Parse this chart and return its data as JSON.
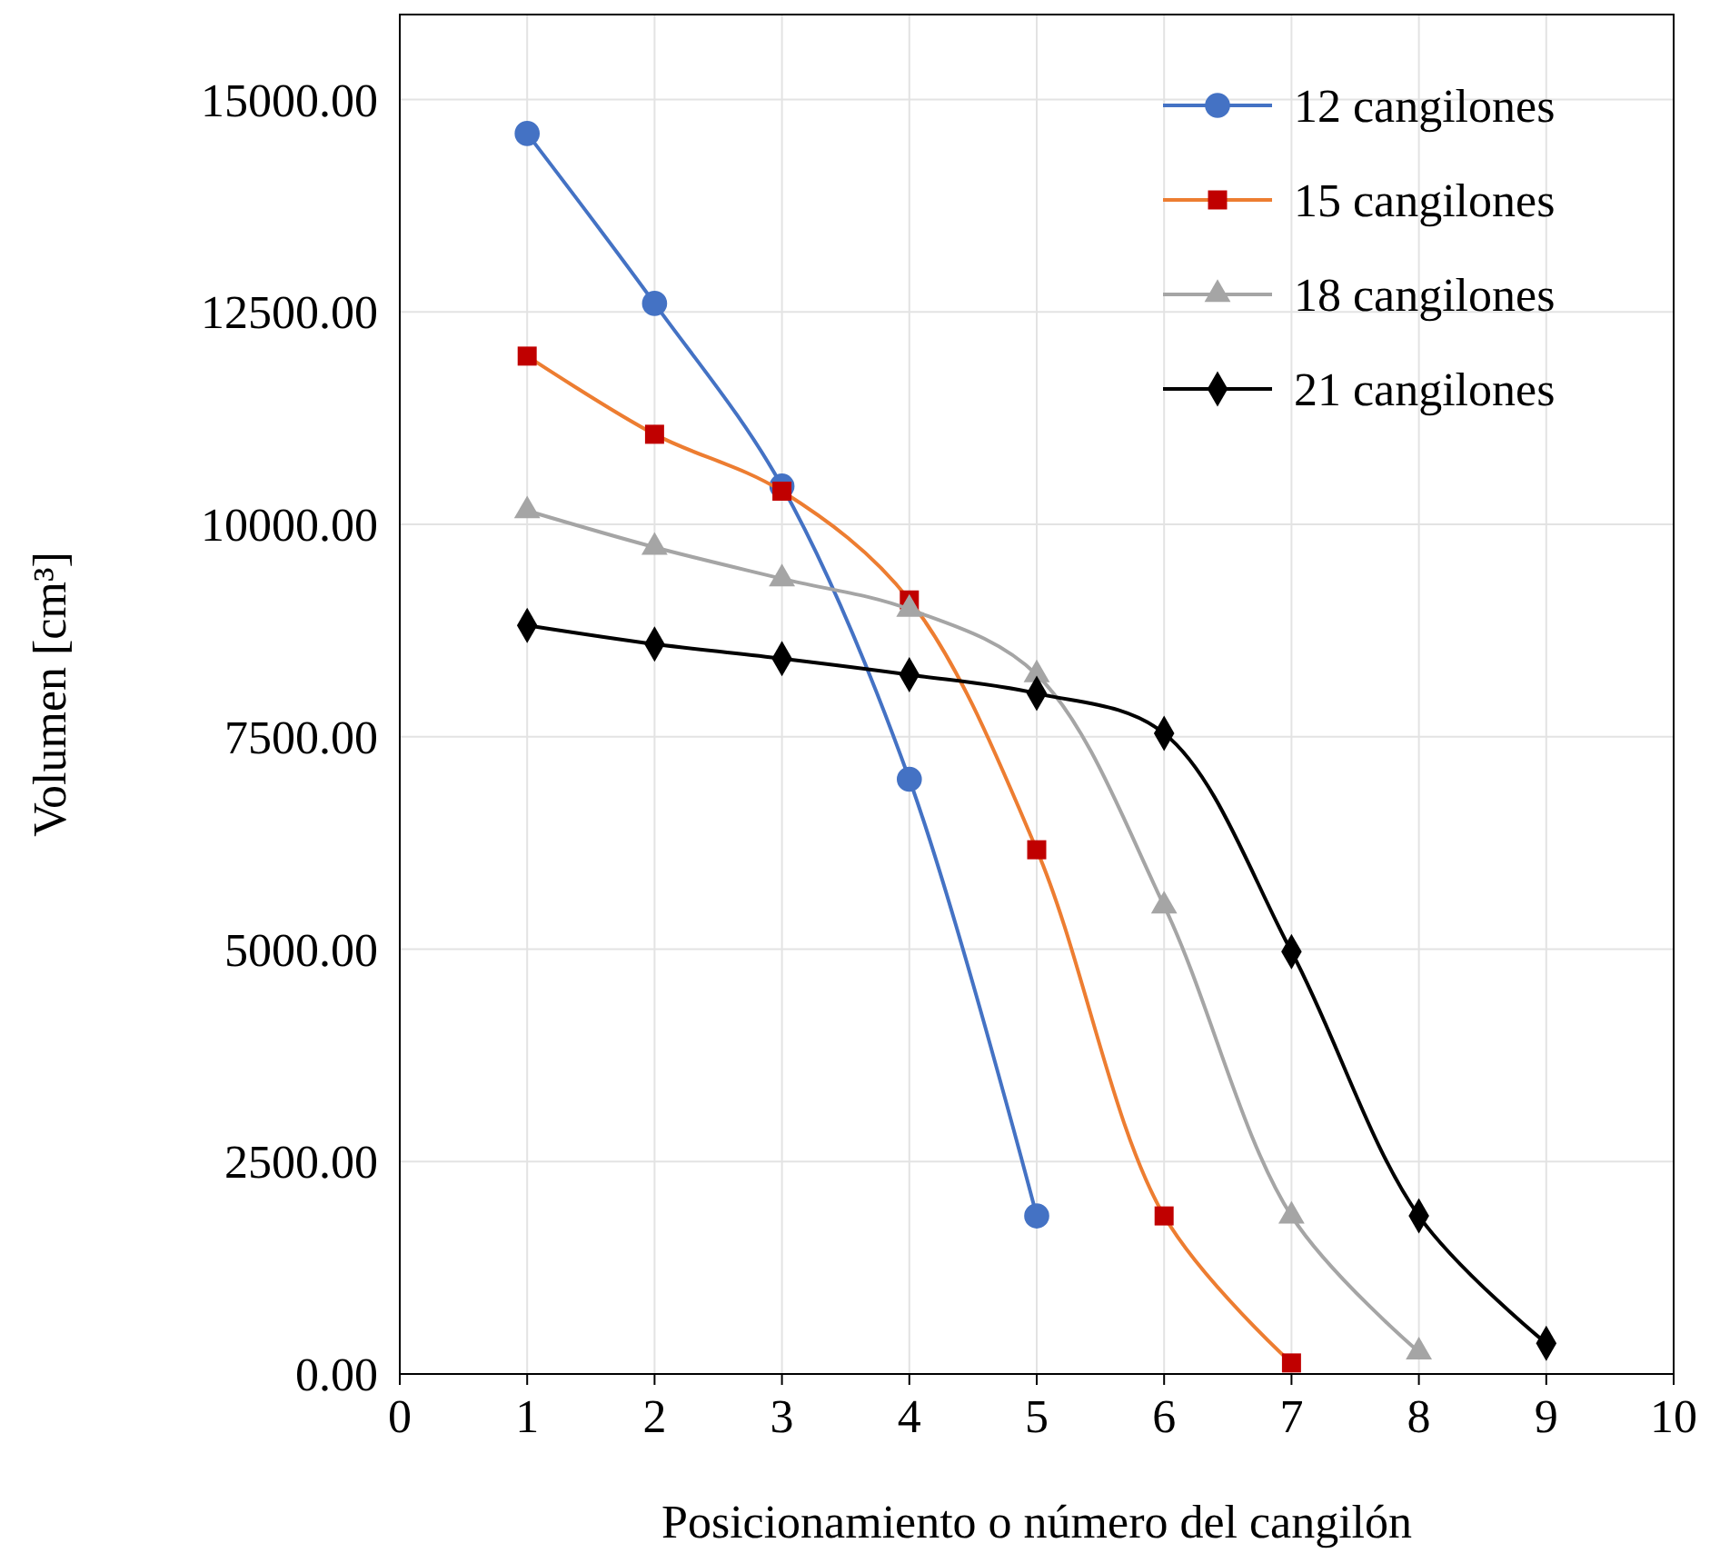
{
  "chart_data": {
    "type": "line",
    "xlabel": "Posicionamiento o número del cangilón",
    "ylabel": "Volumen [cm³]",
    "xlim": [
      0,
      10
    ],
    "xticks": [
      0,
      1,
      2,
      3,
      4,
      5,
      6,
      7,
      8,
      9,
      10
    ],
    "ylim": [
      0,
      16000
    ],
    "yticks": [
      {
        "value": 0,
        "label": "0.00"
      },
      {
        "value": 2500,
        "label": "2500.00"
      },
      {
        "value": 5000,
        "label": "5000.00"
      },
      {
        "value": 7500,
        "label": "7500.00"
      },
      {
        "value": 10000,
        "label": "10000.00"
      },
      {
        "value": 12500,
        "label": "12500.00"
      },
      {
        "value": 15000,
        "label": "15000.00"
      }
    ],
    "grid": true,
    "legend": "top right",
    "line_style": "solid",
    "series": [
      {
        "name": "12 cangilones",
        "color": "#4472c4",
        "marker": "circle",
        "x": [
          1,
          2,
          3,
          4,
          5
        ],
        "values": [
          14600,
          12600,
          10450,
          7000,
          1860
        ]
      },
      {
        "name": "15 cangilones",
        "color": "#ed7d31",
        "colors": [
          "#c00000",
          "#c00000",
          "#c00000",
          "#c00000",
          "#c00000",
          "#c00000",
          "#c00000"
        ],
        "marker": "square",
        "x": [
          1,
          2,
          3,
          4,
          5,
          6,
          7
        ],
        "values": [
          11980,
          11060,
          10390,
          9110,
          6170,
          1860,
          130
        ]
      },
      {
        "name": "18 cangilones",
        "color": "#a5a5a5",
        "marker": "triangle",
        "x": [
          1,
          2,
          3,
          4,
          5,
          6,
          7,
          8
        ],
        "values": [
          10160,
          9730,
          9360,
          9000,
          8230,
          5510,
          1860,
          260
        ]
      },
      {
        "name": "21 cangilones",
        "color": "#000000",
        "marker": "diamond",
        "x": [
          1,
          2,
          3,
          4,
          5,
          6,
          7,
          8,
          9
        ],
        "values": [
          8810,
          8590,
          8420,
          8230,
          8010,
          7540,
          4970,
          1860,
          360
        ]
      }
    ]
  }
}
